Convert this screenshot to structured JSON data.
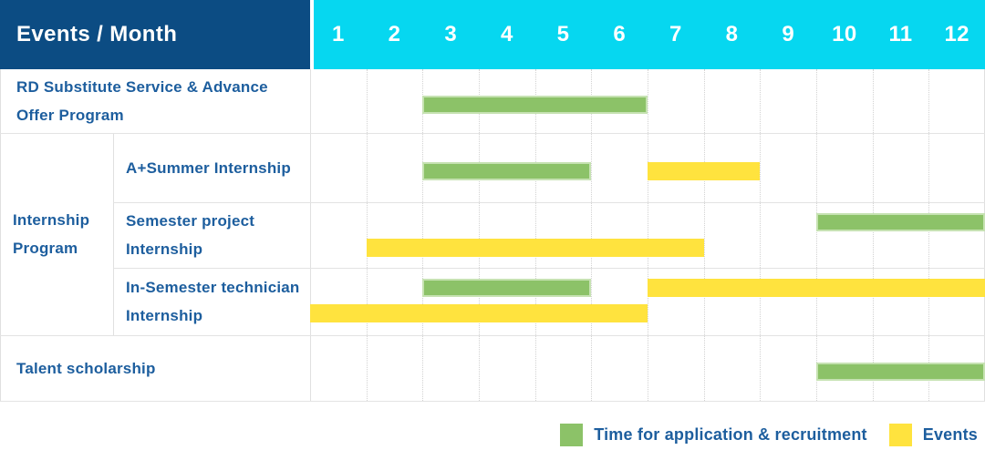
{
  "colors": {
    "header_bg": "#0c4c83",
    "months_bg": "#06d7f0",
    "recruitment_green": "#8cc268",
    "event_yellow": "#ffe33e",
    "label_blue": "#1d5e9e"
  },
  "chart_data": {
    "type": "table",
    "title": "Events / Month",
    "months": [
      "1",
      "2",
      "3",
      "4",
      "5",
      "6",
      "7",
      "8",
      "9",
      "10",
      "11",
      "12"
    ],
    "x_range": [
      1,
      12
    ],
    "legend": [
      {
        "type": "recruitment",
        "label": "Time for application & recruitment"
      },
      {
        "type": "event",
        "label": "Events"
      }
    ],
    "rows": [
      {
        "group": "",
        "label": "RD Substitute Service & Advance Offer Program",
        "lines": [
          [
            {
              "type": "recruitment",
              "start_month": 3,
              "end_month": 6
            }
          ]
        ]
      },
      {
        "group": "Internship Program",
        "label": "A+Summer Internship",
        "lines": [
          [
            {
              "type": "recruitment",
              "start_month": 3,
              "end_month": 5
            },
            {
              "type": "event",
              "start_month": 7,
              "end_month": 8
            }
          ]
        ]
      },
      {
        "group": "Internship Program",
        "label": "Semester project Internship",
        "lines": [
          [
            {
              "type": "recruitment",
              "start_month": 10,
              "end_month": 12
            }
          ],
          [
            {
              "type": "event",
              "start_month": 2,
              "end_month": 7
            }
          ]
        ]
      },
      {
        "group": "Internship Program",
        "label": "In-Semester technician Internship",
        "lines": [
          [
            {
              "type": "recruitment",
              "start_month": 3,
              "end_month": 5
            },
            {
              "type": "event",
              "start_month": 7,
              "end_month": 12
            }
          ],
          [
            {
              "type": "event",
              "start_month": 1,
              "end_month": 6
            }
          ]
        ]
      },
      {
        "group": "",
        "label": "Talent scholarship",
        "lines": [
          [
            {
              "type": "recruitment",
              "start_month": 10,
              "end_month": 12
            }
          ]
        ]
      }
    ]
  }
}
